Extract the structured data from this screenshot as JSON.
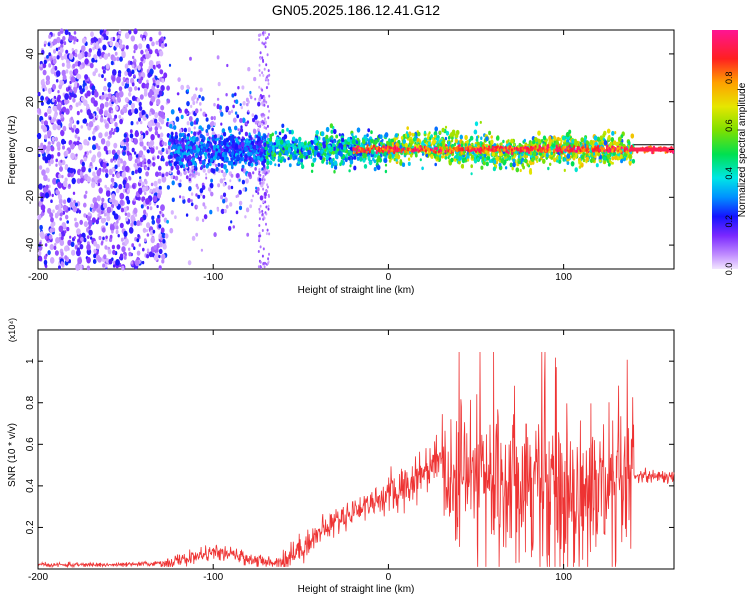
{
  "title": "GN05.2025.186.12.41.G12",
  "chart_data": [
    {
      "type": "heatmap",
      "xlabel": "Height of straight line (km)",
      "ylabel": "Frequency (Hz)",
      "xlim": [
        -200,
        163
      ],
      "ylim": [
        -50,
        50
      ],
      "xticks": [
        -200,
        -100,
        0,
        100
      ],
      "yticks": [
        -40,
        -20,
        0,
        20,
        40
      ],
      "colorbar": {
        "label": "Normalized spectral amplitude",
        "range": [
          0,
          1
        ],
        "ticks": [
          0.0,
          0.2,
          0.4,
          0.6,
          0.8
        ]
      },
      "description_bands": [
        {
          "x_range": [
            -200,
            -127
          ],
          "freq_spread": [
            -50,
            50
          ],
          "amplitude": [
            0.05,
            0.25
          ]
        },
        {
          "x_range": [
            -127,
            -70
          ],
          "freq_spread": [
            -25,
            25
          ],
          "amplitude": [
            0.05,
            0.35
          ]
        },
        {
          "x_range": [
            -70,
            0
          ],
          "freq_spread": [
            -8,
            10
          ],
          "amplitude": [
            0.2,
            0.55
          ]
        },
        {
          "x_range": [
            0,
            140
          ],
          "freq_spread": [
            -10,
            8
          ],
          "amplitude": [
            0.3,
            1.0
          ]
        },
        {
          "x_range": [
            140,
            163
          ],
          "freq_spread": [
            -1,
            1
          ],
          "amplitude": [
            0.9,
            1.0
          ]
        }
      ]
    },
    {
      "type": "line",
      "xlabel": "Height of straight line (km)",
      "ylabel": "SNR (10 * v/v)",
      "yunit_label": "(x10⁴)",
      "xlim": [
        -200,
        163
      ],
      "ylim": [
        0,
        1.15
      ],
      "xticks": [
        -200,
        -100,
        0,
        100
      ],
      "yticks": [
        0.2,
        0.4,
        0.6,
        0.8,
        1.0
      ],
      "color": "#ee3333",
      "series": [
        {
          "x": [
            -200,
            -150,
            -125,
            -110,
            -100,
            -90,
            -80,
            -70,
            -60,
            -50,
            -40,
            -30,
            -20,
            -10,
            0,
            10,
            20,
            30,
            40,
            50,
            60,
            70,
            80,
            90,
            100,
            110,
            120,
            130,
            140,
            150,
            163
          ],
          "y": [
            0.02,
            0.02,
            0.03,
            0.06,
            0.08,
            0.07,
            0.05,
            0.03,
            0.04,
            0.1,
            0.17,
            0.23,
            0.28,
            0.32,
            0.35,
            0.4,
            0.47,
            0.55,
            0.45,
            0.45,
            0.45,
            0.45,
            0.45,
            0.45,
            0.4,
            0.38,
            0.38,
            0.35,
            0.45,
            0.45,
            0.44
          ]
        }
      ]
    }
  ]
}
